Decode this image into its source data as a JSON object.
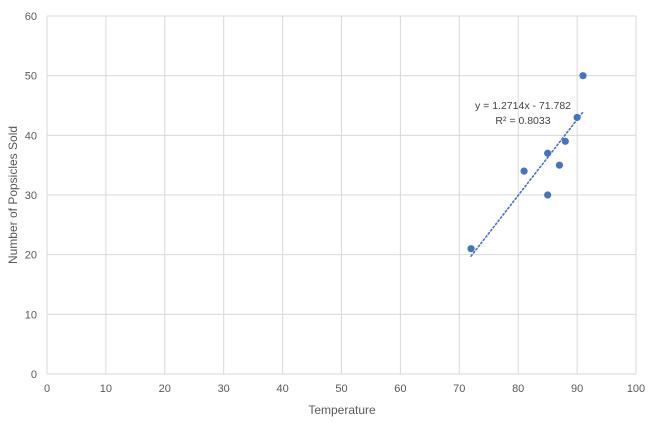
{
  "chart_data": {
    "type": "scatter",
    "xlabel": "Temperature",
    "ylabel": "Number of Popsicles Sold",
    "xlim": [
      0,
      100
    ],
    "ylim": [
      0,
      60
    ],
    "x_ticks": [
      0,
      10,
      20,
      30,
      40,
      50,
      60,
      70,
      80,
      90,
      100
    ],
    "y_ticks": [
      0,
      10,
      20,
      30,
      40,
      50,
      60
    ],
    "grid": true,
    "series": [
      {
        "color": "#4472c4",
        "points": [
          {
            "x": 72,
            "y": 21
          },
          {
            "x": 81,
            "y": 34
          },
          {
            "x": 85,
            "y": 30
          },
          {
            "x": 85,
            "y": 37
          },
          {
            "x": 87,
            "y": 35
          },
          {
            "x": 88,
            "y": 39
          },
          {
            "x": 90,
            "y": 43
          },
          {
            "x": 91,
            "y": 50
          }
        ]
      }
    ],
    "trendline": {
      "type": "linear",
      "slope": 1.2714,
      "intercept": -71.782,
      "x_range": [
        72,
        91
      ],
      "equation_label": "y = 1.2714x - 71.782",
      "r2_label": "R² = 0.8033",
      "color": "#4472c4"
    }
  }
}
